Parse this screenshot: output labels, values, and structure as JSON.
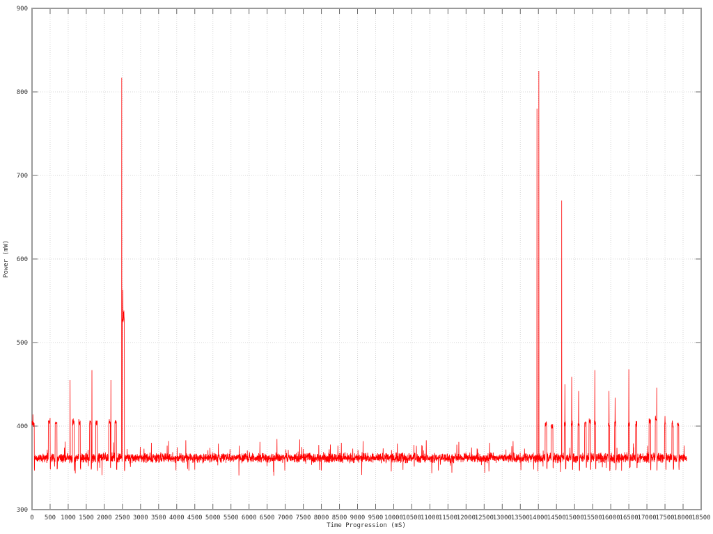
{
  "chart_data": {
    "type": "line",
    "title": "",
    "xlabel": "Time Progression (mS)",
    "ylabel": "Power (mW)",
    "xlim": [
      0,
      18500
    ],
    "ylim": [
      300,
      900
    ],
    "xtick_step": 500,
    "ytick_step": 100,
    "grid": true,
    "legend": "none",
    "series_count": 1,
    "sample_interval_ms": 4,
    "t_end": 18100,
    "baseline": {
      "mean": 362,
      "jitter": 7,
      "excursion_prob": 0.02,
      "post_burst_dip": 349
    },
    "bursts": [
      {
        "t": 0,
        "w": 60,
        "level": 403
      },
      {
        "t": 450,
        "w": 50,
        "level": 406
      },
      {
        "t": 640,
        "w": 50,
        "level": 404
      },
      {
        "t": 1120,
        "w": 45,
        "level": 405
      },
      {
        "t": 1290,
        "w": 45,
        "level": 404
      },
      {
        "t": 1590,
        "w": 45,
        "level": 405
      },
      {
        "t": 1760,
        "w": 45,
        "level": 404
      },
      {
        "t": 2120,
        "w": 45,
        "level": 406
      },
      {
        "t": 2290,
        "w": 45,
        "level": 404
      },
      {
        "t": 2495,
        "w": 60,
        "level": 528,
        "jitter": 12
      },
      {
        "t": 14185,
        "w": 45,
        "level": 401
      },
      {
        "t": 14355,
        "w": 45,
        "level": 400
      },
      {
        "t": 14715,
        "w": 35,
        "level": 402
      },
      {
        "t": 14905,
        "w": 35,
        "level": 403
      },
      {
        "t": 15095,
        "w": 35,
        "level": 402
      },
      {
        "t": 15280,
        "w": 40,
        "level": 404
      },
      {
        "t": 15400,
        "w": 40,
        "level": 405
      },
      {
        "t": 15545,
        "w": 35,
        "level": 404
      },
      {
        "t": 15935,
        "w": 35,
        "level": 402
      },
      {
        "t": 16105,
        "w": 35,
        "level": 403
      },
      {
        "t": 16485,
        "w": 35,
        "level": 403
      },
      {
        "t": 16685,
        "w": 35,
        "level": 402
      },
      {
        "t": 17060,
        "w": 40,
        "level": 406
      },
      {
        "t": 17230,
        "w": 40,
        "level": 408
      },
      {
        "t": 17485,
        "w": 35,
        "level": 403
      },
      {
        "t": 17690,
        "w": 40,
        "level": 402
      },
      {
        "t": 17840,
        "w": 40,
        "level": 403
      }
    ],
    "spikes": [
      {
        "t": 25,
        "peak": 414
      },
      {
        "t": 1050,
        "peak": 455
      },
      {
        "t": 1655,
        "peak": 467
      },
      {
        "t": 2180,
        "peak": 455
      },
      {
        "t": 2480,
        "peak": 817
      },
      {
        "t": 2510,
        "peak": 563
      },
      {
        "t": 3300,
        "peak": 380
      },
      {
        "t": 4250,
        "peak": 383
      },
      {
        "t": 5150,
        "peak": 379
      },
      {
        "t": 6300,
        "peak": 381
      },
      {
        "t": 7400,
        "peak": 384
      },
      {
        "t": 8550,
        "peak": 380
      },
      {
        "t": 9150,
        "peak": 382
      },
      {
        "t": 10100,
        "peak": 379
      },
      {
        "t": 10900,
        "peak": 383
      },
      {
        "t": 11800,
        "peak": 381
      },
      {
        "t": 12650,
        "peak": 380
      },
      {
        "t": 13300,
        "peak": 382
      },
      {
        "t": 13960,
        "peak": 780
      },
      {
        "t": 14010,
        "peak": 825
      },
      {
        "t": 14645,
        "peak": 670
      },
      {
        "t": 14730,
        "peak": 450
      },
      {
        "t": 14920,
        "peak": 459
      },
      {
        "t": 15110,
        "peak": 442
      },
      {
        "t": 15560,
        "peak": 467
      },
      {
        "t": 15950,
        "peak": 442
      },
      {
        "t": 16120,
        "peak": 434
      },
      {
        "t": 16500,
        "peak": 468
      },
      {
        "t": 16700,
        "peak": 406
      },
      {
        "t": 17270,
        "peak": 446
      },
      {
        "t": 17500,
        "peak": 412
      },
      {
        "t": 17710,
        "peak": 403
      },
      {
        "t": 17860,
        "peak": 404
      }
    ]
  },
  "colors": {
    "line": "#ff0000",
    "grid": "#d6d6d6",
    "border": "#9a9a9a",
    "tick": "#666666",
    "text": "#333333",
    "background": "#ffffff"
  }
}
